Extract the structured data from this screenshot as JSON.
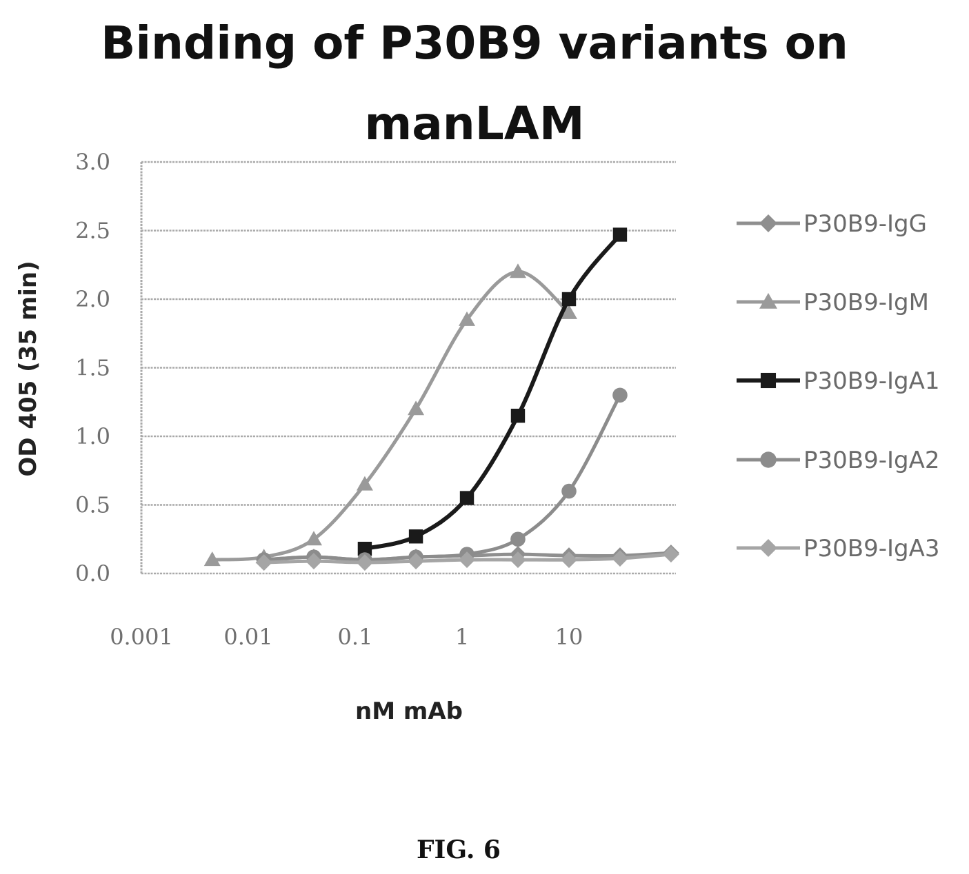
{
  "chart_data": {
    "type": "line",
    "title_lines": [
      "Binding of P30B9 variants on",
      "manLAM"
    ],
    "xlabel": "nM mAb",
    "ylabel": "OD 405 (35 min)",
    "x_scale": "log",
    "xlim": [
      0.001,
      100
    ],
    "ylim": [
      0,
      3.0
    ],
    "x_ticks": [
      "0.001",
      "0.01",
      "0.1",
      "1",
      "10"
    ],
    "y_ticks": [
      "0.0",
      "0.5",
      "1.0",
      "1.5",
      "2.0",
      "2.5",
      "3.0"
    ],
    "grid": "horizontal",
    "legend_position": "right",
    "series": [
      {
        "name": "P30B9-IgG",
        "color": "#8f8f8f",
        "marker": "diamond",
        "points": [
          [
            0.014,
            0.1
          ],
          [
            0.041,
            0.12
          ],
          [
            0.123,
            0.1
          ],
          [
            0.37,
            0.12
          ],
          [
            1.11,
            0.13
          ],
          [
            3.33,
            0.14
          ],
          [
            10,
            0.13
          ],
          [
            30,
            0.13
          ],
          [
            90,
            0.15
          ]
        ]
      },
      {
        "name": "P30B9-IgM",
        "color": "#9a9a9a",
        "marker": "triangle",
        "points": [
          [
            0.0046,
            0.1
          ],
          [
            0.014,
            0.12
          ],
          [
            0.041,
            0.25
          ],
          [
            0.123,
            0.65
          ],
          [
            0.37,
            1.2
          ],
          [
            1.11,
            1.85
          ],
          [
            3.33,
            2.2
          ],
          [
            10,
            1.9
          ]
        ]
      },
      {
        "name": "P30B9-IgA1",
        "color": "#1a1a1a",
        "marker": "square",
        "points": [
          [
            0.123,
            0.18
          ],
          [
            0.37,
            0.27
          ],
          [
            1.11,
            0.55
          ],
          [
            3.33,
            1.15
          ],
          [
            10,
            2.0
          ],
          [
            30,
            2.47
          ]
        ]
      },
      {
        "name": "P30B9-IgA2",
        "color": "#8c8c8c",
        "marker": "circle",
        "points": [
          [
            0.014,
            0.1
          ],
          [
            0.041,
            0.12
          ],
          [
            0.123,
            0.1
          ],
          [
            0.37,
            0.12
          ],
          [
            1.11,
            0.14
          ],
          [
            3.33,
            0.25
          ],
          [
            10,
            0.6
          ],
          [
            30,
            1.3
          ]
        ]
      },
      {
        "name": "P30B9-IgA3",
        "color": "#a5a5a5",
        "marker": "diamond",
        "points": [
          [
            0.014,
            0.08
          ],
          [
            0.041,
            0.09
          ],
          [
            0.123,
            0.08
          ],
          [
            0.37,
            0.09
          ],
          [
            1.11,
            0.1
          ],
          [
            3.33,
            0.1
          ],
          [
            10,
            0.1
          ],
          [
            30,
            0.11
          ],
          [
            90,
            0.14
          ]
        ]
      }
    ]
  },
  "caption": "FIG. 6"
}
